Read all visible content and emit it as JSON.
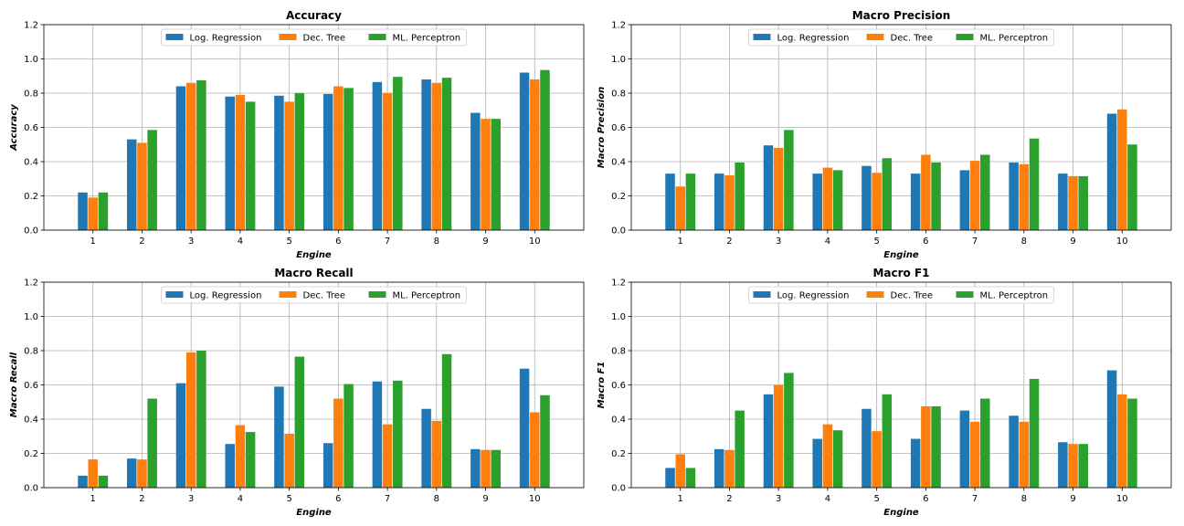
{
  "colors": {
    "Log. Regression": "#1f77b4",
    "Dec. Tree": "#ff7f0e",
    "ML. Perceptron": "#2ca02c",
    "grid": "#b0b0b0"
  },
  "chart_data": [
    {
      "type": "bar",
      "title": "Accuracy",
      "xlabel": "Engine",
      "ylabel": "Accuracy",
      "ylim": [
        0,
        1.2
      ],
      "yticks": [
        "0.0",
        "0.2",
        "0.4",
        "0.6",
        "0.8",
        "1.0",
        "1.2"
      ],
      "categories": [
        "1",
        "2",
        "3",
        "4",
        "5",
        "6",
        "7",
        "8",
        "9",
        "10"
      ],
      "legend": "top-center",
      "grid": true,
      "series": [
        {
          "name": "Log. Regression",
          "values": [
            0.22,
            0.53,
            0.84,
            0.78,
            0.785,
            0.795,
            0.865,
            0.88,
            0.685,
            0.92
          ]
        },
        {
          "name": "Dec. Tree",
          "values": [
            0.19,
            0.51,
            0.86,
            0.79,
            0.75,
            0.84,
            0.8,
            0.86,
            0.65,
            0.88
          ]
        },
        {
          "name": "ML. Perceptron",
          "values": [
            0.22,
            0.585,
            0.875,
            0.75,
            0.8,
            0.83,
            0.895,
            0.89,
            0.65,
            0.935
          ]
        }
      ]
    },
    {
      "type": "bar",
      "title": "Macro Precision",
      "xlabel": "Engine",
      "ylabel": "Macro Precision",
      "ylim": [
        0,
        1.2
      ],
      "yticks": [
        "0.0",
        "0.2",
        "0.4",
        "0.6",
        "0.8",
        "1.0",
        "1.2"
      ],
      "categories": [
        "1",
        "2",
        "3",
        "4",
        "5",
        "6",
        "7",
        "8",
        "9",
        "10"
      ],
      "legend": "top-center",
      "grid": true,
      "series": [
        {
          "name": "Log. Regression",
          "values": [
            0.33,
            0.33,
            0.495,
            0.33,
            0.375,
            0.33,
            0.35,
            0.395,
            0.33,
            0.68
          ]
        },
        {
          "name": "Dec. Tree",
          "values": [
            0.255,
            0.32,
            0.48,
            0.365,
            0.335,
            0.44,
            0.405,
            0.385,
            0.315,
            0.705
          ]
        },
        {
          "name": "ML. Perceptron",
          "values": [
            0.33,
            0.395,
            0.585,
            0.35,
            0.42,
            0.395,
            0.44,
            0.535,
            0.315,
            0.5
          ]
        }
      ]
    },
    {
      "type": "bar",
      "title": "Macro Recall",
      "xlabel": "Engine",
      "ylabel": "Macro Recall",
      "ylim": [
        0,
        1.2
      ],
      "yticks": [
        "0.0",
        "0.2",
        "0.4",
        "0.6",
        "0.8",
        "1.0",
        "1.2"
      ],
      "categories": [
        "1",
        "2",
        "3",
        "4",
        "5",
        "6",
        "7",
        "8",
        "9",
        "10"
      ],
      "legend": "top-center",
      "grid": true,
      "series": [
        {
          "name": "Log. Regression",
          "values": [
            0.07,
            0.17,
            0.61,
            0.255,
            0.59,
            0.26,
            0.62,
            0.46,
            0.225,
            0.695
          ]
        },
        {
          "name": "Dec. Tree",
          "values": [
            0.165,
            0.165,
            0.79,
            0.365,
            0.315,
            0.52,
            0.37,
            0.39,
            0.22,
            0.44
          ]
        },
        {
          "name": "ML. Perceptron",
          "values": [
            0.07,
            0.52,
            0.8,
            0.325,
            0.765,
            0.605,
            0.625,
            0.78,
            0.22,
            0.54
          ]
        }
      ]
    },
    {
      "type": "bar",
      "title": "Macro F1",
      "xlabel": "Engine",
      "ylabel": "Macro F1",
      "ylim": [
        0,
        1.2
      ],
      "yticks": [
        "0.0",
        "0.2",
        "0.4",
        "0.6",
        "0.8",
        "1.0",
        "1.2"
      ],
      "categories": [
        "1",
        "2",
        "3",
        "4",
        "5",
        "6",
        "7",
        "8",
        "9",
        "10"
      ],
      "legend": "top-center",
      "grid": true,
      "series": [
        {
          "name": "Log. Regression",
          "values": [
            0.115,
            0.225,
            0.545,
            0.285,
            0.46,
            0.285,
            0.45,
            0.42,
            0.265,
            0.685
          ]
        },
        {
          "name": "Dec. Tree",
          "values": [
            0.195,
            0.22,
            0.6,
            0.37,
            0.33,
            0.475,
            0.385,
            0.385,
            0.255,
            0.545
          ]
        },
        {
          "name": "ML. Perceptron",
          "values": [
            0.115,
            0.45,
            0.67,
            0.335,
            0.545,
            0.475,
            0.52,
            0.635,
            0.255,
            0.52
          ]
        }
      ]
    }
  ]
}
